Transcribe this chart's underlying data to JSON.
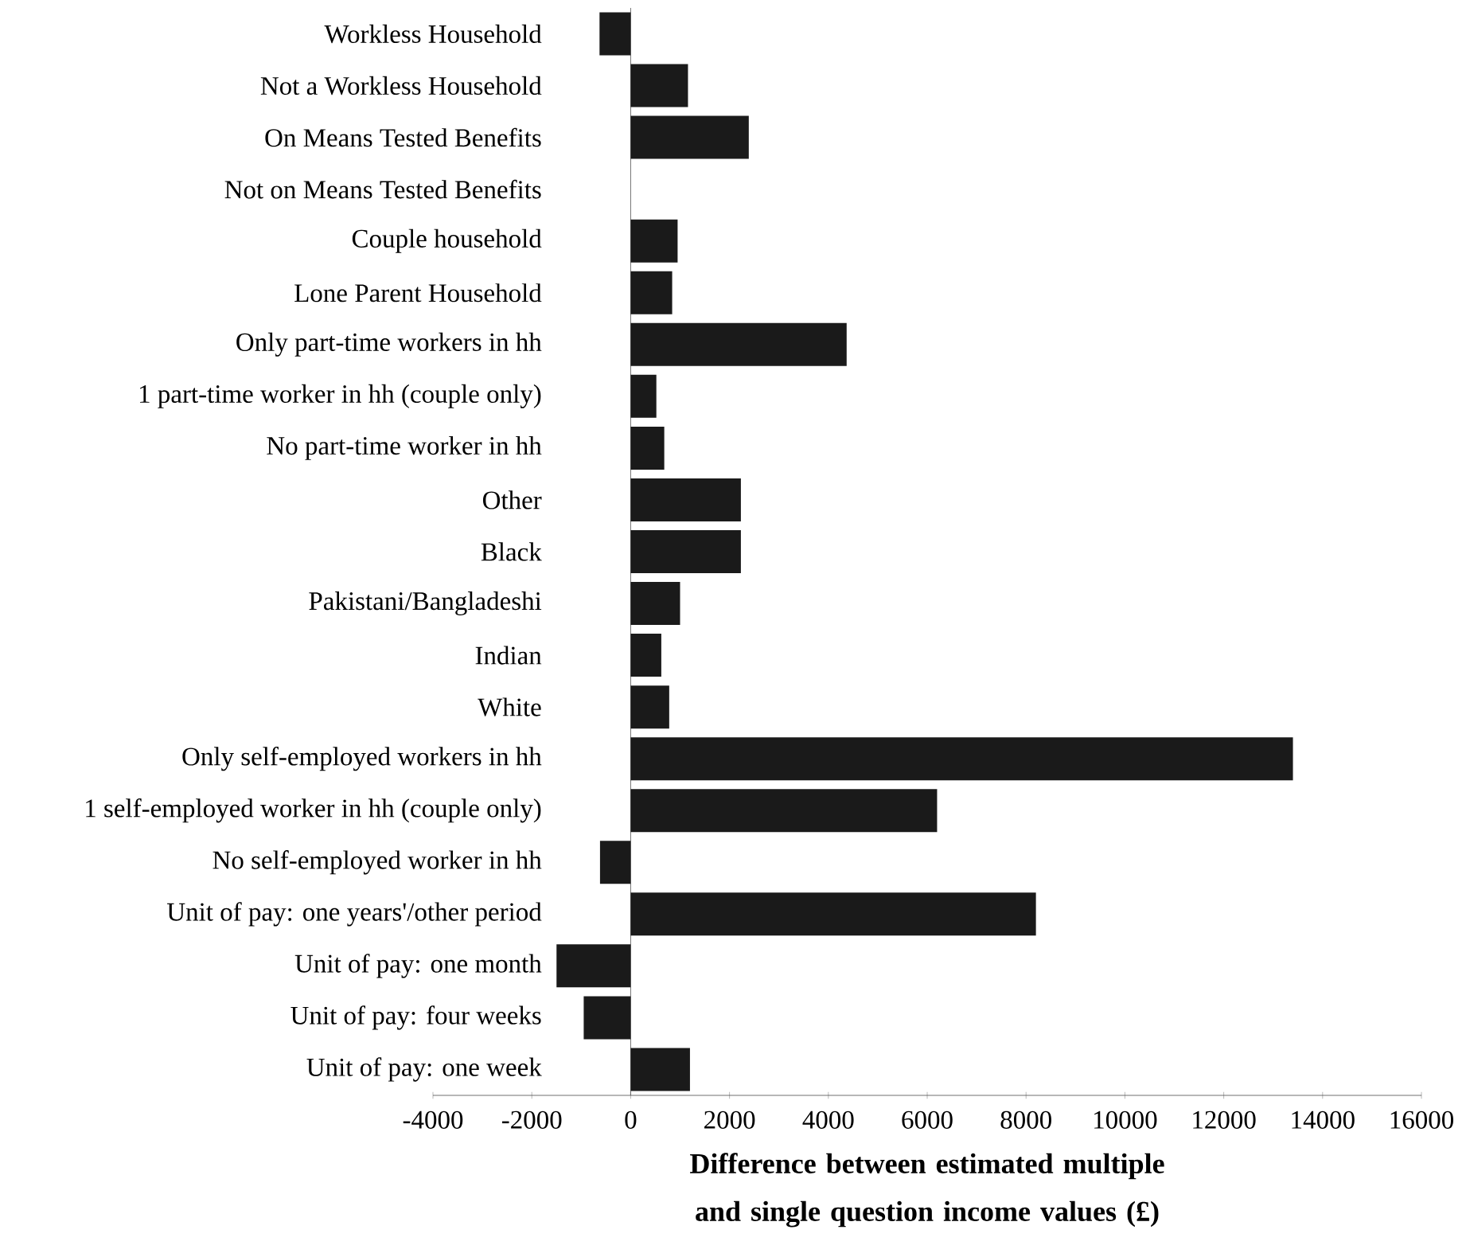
{
  "chart_data": {
    "type": "bar",
    "orientation": "horizontal",
    "xlabel": "Difference between estimated multiple and single question income values (£)",
    "categories": [
      "Workless Household",
      "Not a Workless Household",
      "On Means Tested Benefits",
      "Not on Means Tested Benefits",
      "Couple household",
      "Lone Parent Household",
      "Only part-time workers in hh",
      "1 part-time worker in hh (couple only)",
      "No part-time worker in hh",
      "Other",
      "Black",
      "Pakistani/Bangladeshi",
      "Indian",
      "White",
      "Only self-employed workers in hh",
      "1 self-employed worker in hh (couple only)",
      "No self-employed worker in hh",
      "Unit of pay: one years'/other period",
      "Unit of pay: one month",
      "Unit of pay: four weeks",
      "Unit of pay: one week"
    ],
    "values": [
      -630,
      1160,
      2390,
      0,
      950,
      840,
      4370,
      520,
      680,
      2230,
      2230,
      1000,
      620,
      780,
      13400,
      6200,
      -620,
      8200,
      -1500,
      -950,
      1200
    ],
    "color": "#1a1a1a",
    "xlim": [
      -4000,
      16000
    ],
    "xticks": [
      -4000,
      -2000,
      0,
      2000,
      4000,
      6000,
      8000,
      10000,
      12000,
      14000,
      16000
    ]
  }
}
